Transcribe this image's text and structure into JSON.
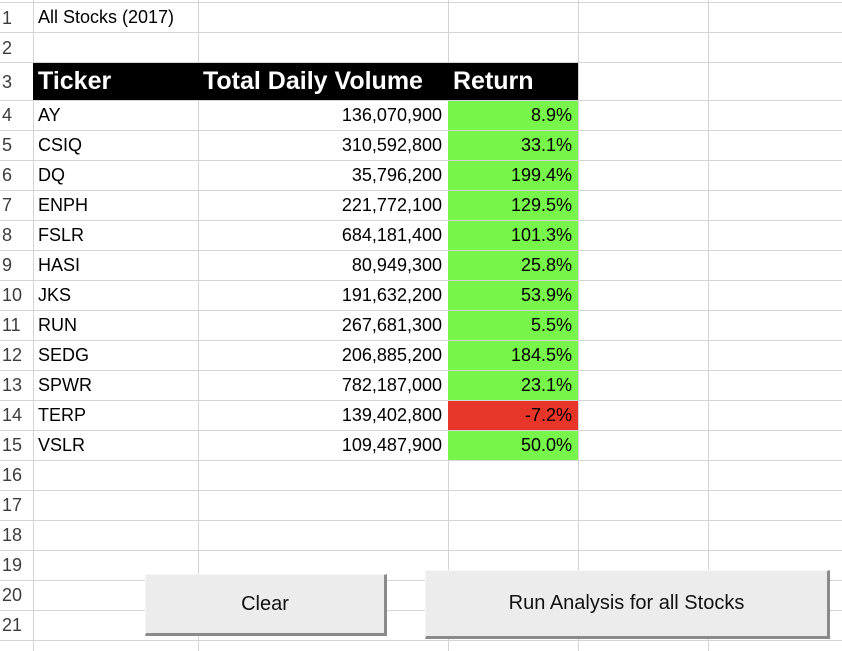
{
  "title_cell": "All Stocks (2017)",
  "headers": {
    "ticker": "Ticker",
    "volume": "Total Daily Volume",
    "return": "Return"
  },
  "row_numbers": [
    "1",
    "2",
    "3",
    "4",
    "5",
    "6",
    "7",
    "8",
    "9",
    "10",
    "11",
    "12",
    "13",
    "14",
    "15",
    "16",
    "17",
    "18",
    "19",
    "20",
    "21"
  ],
  "rows": [
    {
      "ticker": "AY",
      "volume": "136,070,900",
      "return": "8.9%",
      "status": "positive"
    },
    {
      "ticker": "CSIQ",
      "volume": "310,592,800",
      "return": "33.1%",
      "status": "positive"
    },
    {
      "ticker": "DQ",
      "volume": "35,796,200",
      "return": "199.4%",
      "status": "positive"
    },
    {
      "ticker": "ENPH",
      "volume": "221,772,100",
      "return": "129.5%",
      "status": "positive"
    },
    {
      "ticker": "FSLR",
      "volume": "684,181,400",
      "return": "101.3%",
      "status": "positive"
    },
    {
      "ticker": "HASI",
      "volume": "80,949,300",
      "return": "25.8%",
      "status": "positive"
    },
    {
      "ticker": "JKS",
      "volume": "191,632,200",
      "return": "53.9%",
      "status": "positive"
    },
    {
      "ticker": "RUN",
      "volume": "267,681,300",
      "return": "5.5%",
      "status": "positive"
    },
    {
      "ticker": "SEDG",
      "volume": "206,885,200",
      "return": "184.5%",
      "status": "positive"
    },
    {
      "ticker": "SPWR",
      "volume": "782,187,000",
      "return": "23.1%",
      "status": "positive"
    },
    {
      "ticker": "TERP",
      "volume": "139,402,800",
      "return": "-7.2%",
      "status": "negative"
    },
    {
      "ticker": "VSLR",
      "volume": "109,487,900",
      "return": "50.0%",
      "status": "positive"
    }
  ],
  "buttons": {
    "clear": "Clear",
    "run": "Run Analysis for all Stocks"
  },
  "colors": {
    "positive": "#78f54a",
    "negative": "#e8352a",
    "header_bg": "#000000",
    "header_text": "#ffffff"
  }
}
